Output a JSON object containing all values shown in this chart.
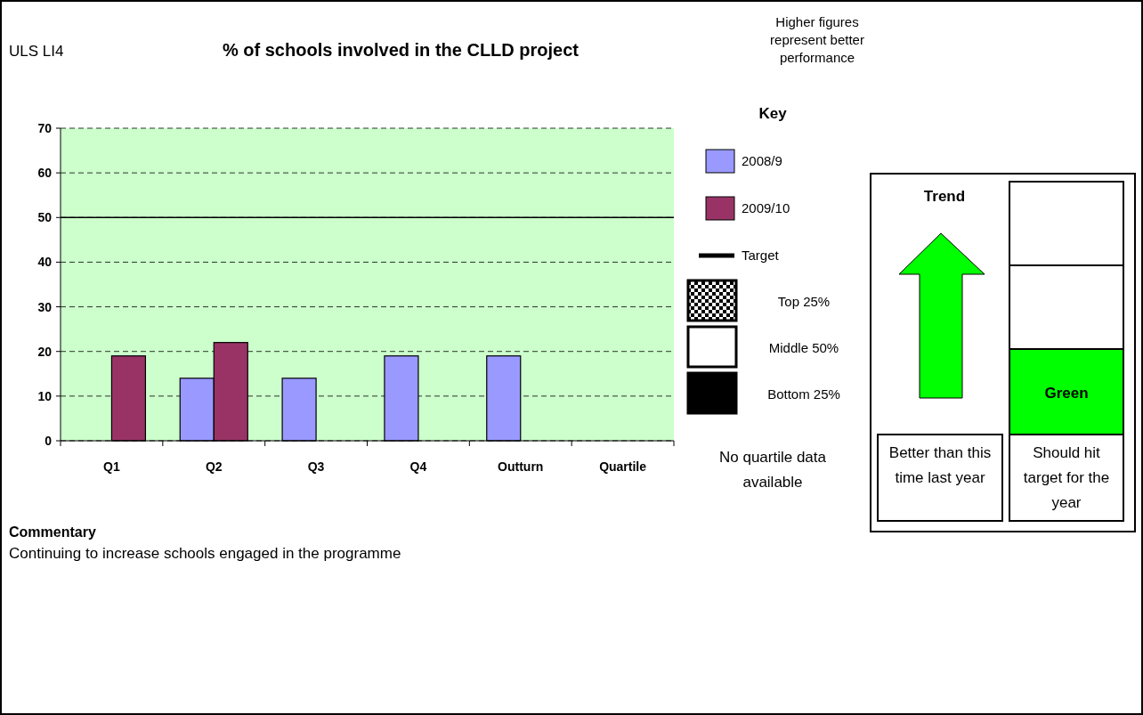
{
  "chart_data": {
    "type": "bar",
    "title": "% of schools involved in the CLLD project",
    "categories": [
      "Q1",
      "Q2",
      "Q3",
      "Q4",
      "Outturn",
      "Quartile"
    ],
    "series": [
      {
        "name": "2008/9",
        "color": "#9999ff",
        "values": [
          null,
          14,
          14,
          19,
          19,
          null
        ]
      },
      {
        "name": "2009/10",
        "color": "#993366",
        "values": [
          19,
          22,
          null,
          null,
          null,
          null
        ]
      }
    ],
    "ylim": [
      0,
      70
    ],
    "yticks": [
      0,
      10,
      20,
      30,
      40,
      50,
      60,
      70
    ],
    "grid": "y",
    "line_style": "dashed",
    "ref_lines": [
      {
        "axis": "y",
        "value": 50,
        "label": "Target",
        "color": "#000000"
      }
    ],
    "legend": "right",
    "legend_title": "Key",
    "annotations": [
      "ULS LI4",
      "Higher figures represent better performance",
      "Top 25%",
      "Middle 50%",
      "Bottom 25%",
      "No quartile data available",
      "Trend",
      "Green",
      "Better than this time last year",
      "Should hit target for the year",
      "Commentary",
      "Continuing to increase schools engaged in the programme"
    ]
  }
}
